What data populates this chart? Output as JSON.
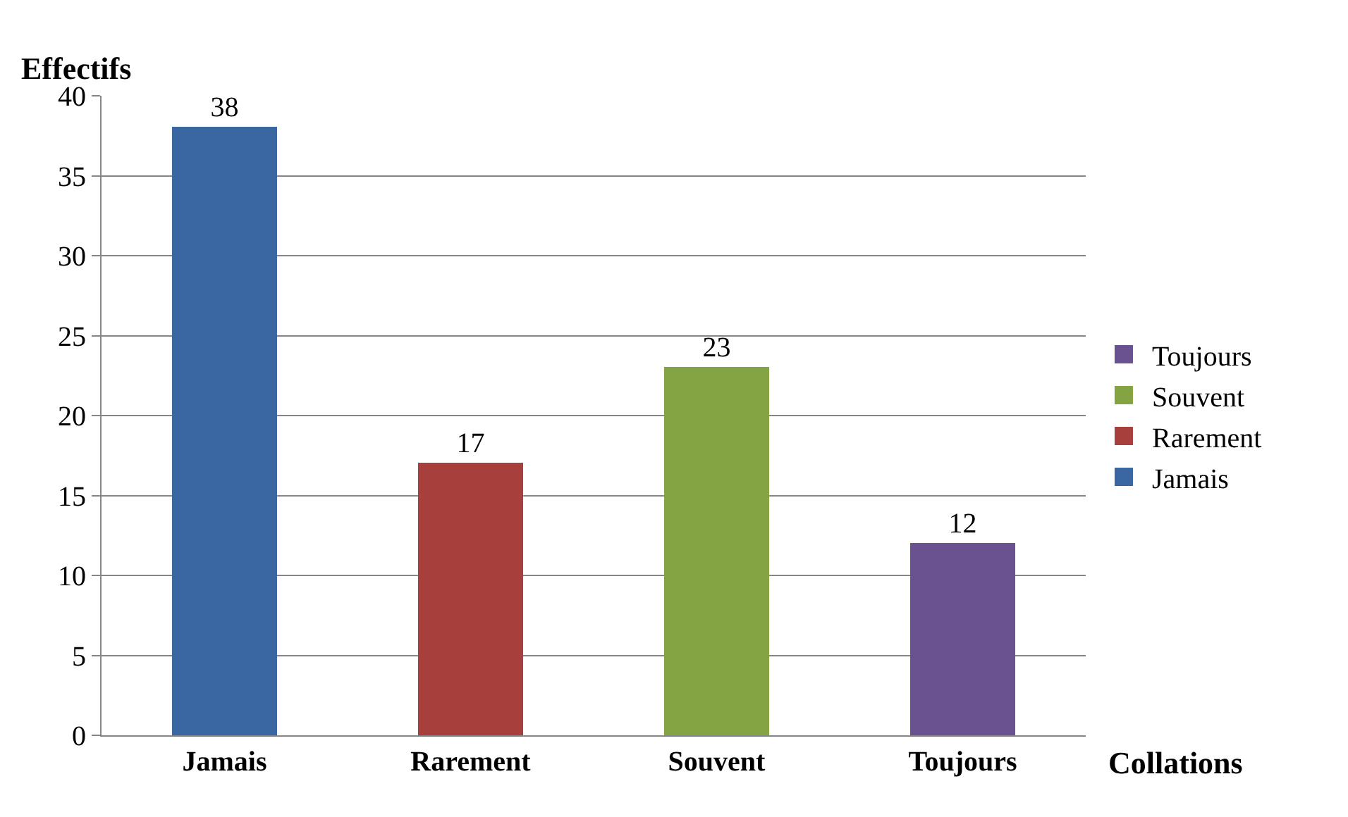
{
  "chart_data": {
    "type": "bar",
    "ylabel": "Effectifs",
    "xlabel": "Collations",
    "categories": [
      "Jamais",
      "Rarement",
      "Souvent",
      "Toujours"
    ],
    "series": [
      {
        "name": "Jamais",
        "color": "#3a67a2",
        "values": [
          38,
          null,
          null,
          null
        ]
      },
      {
        "name": "Rarement",
        "color": "#a7403d",
        "values": [
          null,
          17,
          null,
          null
        ]
      },
      {
        "name": "Souvent",
        "color": "#84a342",
        "values": [
          null,
          null,
          23,
          null
        ]
      },
      {
        "name": "Toujours",
        "color": "#6a5190",
        "values": [
          null,
          null,
          null,
          12
        ]
      }
    ],
    "stacked": true,
    "ylim": [
      0,
      40
    ],
    "yticks": [
      0,
      5,
      10,
      15,
      20,
      25,
      30,
      35,
      40
    ],
    "grid": "y",
    "legend": "right",
    "data_labels": true
  }
}
